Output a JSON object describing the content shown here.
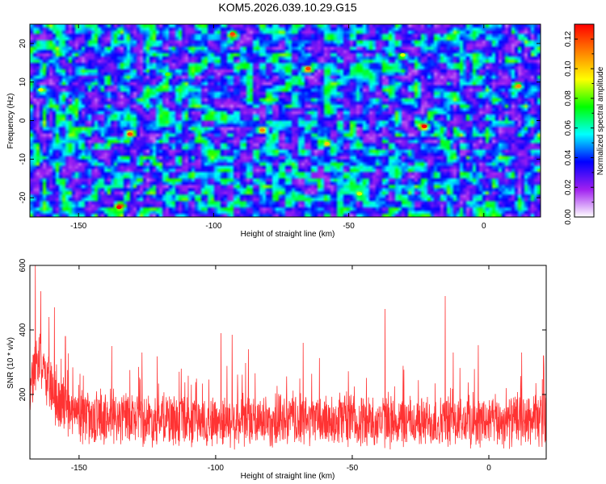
{
  "chart_data": [
    {
      "type": "heatmap",
      "title": "KOM5.2026.039.10.29.G15",
      "xlabel": "Height of straight line (km)",
      "ylabel": "Frequency (Hz)",
      "xlim": [
        -168,
        21
      ],
      "ylim": [
        -25,
        25
      ],
      "xticks": [
        -150,
        -100,
        -50,
        0
      ],
      "yticks": [
        -20,
        -10,
        0,
        10,
        20
      ],
      "colorbar": {
        "label": "Normalized spectral amplitude",
        "range": [
          0,
          0.13
        ],
        "ticks": [
          0.0,
          0.02,
          0.04,
          0.06,
          0.08,
          0.1,
          0.12
        ],
        "tick_labels": [
          "0.00",
          "0.02",
          "0.04",
          "0.06",
          "0.08",
          "0.10",
          "0.12"
        ],
        "colors": [
          "#ffffff",
          "#a020f0",
          "#0000ff",
          "#00ffff",
          "#00ff00",
          "#ffff00",
          "#ff8000",
          "#ff0000"
        ]
      },
      "hot_spots": [
        {
          "x": -135,
          "y": -22.5,
          "value": 0.13
        },
        {
          "x": -131,
          "y": -3.5,
          "value": 0.12
        },
        {
          "x": -93,
          "y": 22.5,
          "value": 0.12
        },
        {
          "x": -82,
          "y": -2.5,
          "value": 0.11
        },
        {
          "x": -65,
          "y": 13.5,
          "value": 0.12
        },
        {
          "x": -58,
          "y": -6,
          "value": 0.1
        },
        {
          "x": -22,
          "y": -1.5,
          "value": 0.13
        },
        {
          "x": -30,
          "y": 17,
          "value": 0.09
        },
        {
          "x": 13,
          "y": 9,
          "value": 0.11
        },
        {
          "x": -164,
          "y": 8,
          "value": 0.09
        },
        {
          "x": -117,
          "y": 12,
          "value": 0.08
        },
        {
          "x": -46,
          "y": -19,
          "value": 0.09
        }
      ]
    },
    {
      "type": "line",
      "title": "",
      "xlabel": "Height of straight line (km)",
      "ylabel": "SNR (10 * v/v)",
      "xlim": [
        -168,
        21
      ],
      "ylim": [
        0,
        600
      ],
      "xticks": [
        -150,
        -100,
        -50,
        0
      ],
      "yticks": [
        200,
        400,
        600
      ],
      "series": [
        {
          "name": "SNR",
          "color": "#ff3333",
          "baseline_profile": [
            [
              -168,
              230
            ],
            [
              -165,
              310
            ],
            [
              -162,
              250
            ],
            [
              -158,
              170
            ],
            [
              -150,
              130
            ],
            [
              -120,
              120
            ],
            [
              -90,
              115
            ],
            [
              -60,
              120
            ],
            [
              -30,
              115
            ],
            [
              0,
              115
            ],
            [
              21,
              120
            ]
          ],
          "peaks": [
            [
              -166,
              600
            ],
            [
              -164,
              520
            ],
            [
              -161,
              440
            ],
            [
              -159,
              470
            ],
            [
              -155,
              380
            ],
            [
              -138,
              350
            ],
            [
              -127,
              330
            ],
            [
              -98,
              390
            ],
            [
              -94,
              385
            ],
            [
              -88,
              340
            ],
            [
              -68,
              360
            ],
            [
              -38,
              465
            ],
            [
              -16,
              505
            ],
            [
              -13,
              330
            ],
            [
              12,
              330
            ],
            [
              20,
              320
            ]
          ],
          "noise_amplitude": 90,
          "num_points": 2000
        }
      ]
    }
  ]
}
